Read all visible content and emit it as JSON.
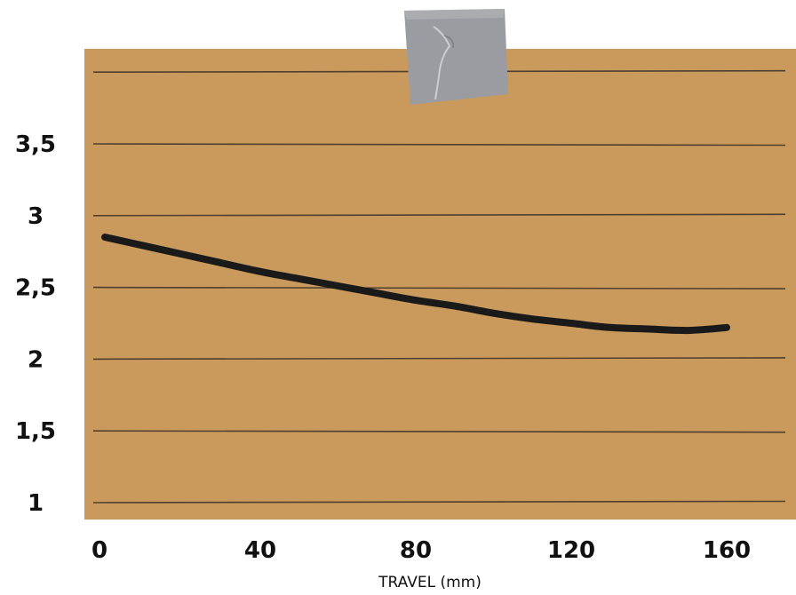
{
  "chart_data": {
    "type": "line",
    "title": "",
    "xlabel": "TRAVEL (mm)",
    "ylabel": "",
    "xlim": [
      0,
      160
    ],
    "ylim": [
      1,
      3.5
    ],
    "x_ticks": [
      "0",
      "40",
      "80",
      "120",
      "160"
    ],
    "y_ticks": [
      "1",
      "1,5",
      "2",
      "2,5",
      "3",
      "3,5"
    ],
    "grid": true,
    "legend": "none",
    "series": [
      {
        "x": [
          0,
          10,
          20,
          30,
          40,
          50,
          60,
          70,
          80,
          90,
          100,
          110,
          120,
          130,
          140,
          150,
          160
        ],
        "y": [
          2.85,
          2.79,
          2.73,
          2.67,
          2.61,
          2.56,
          2.51,
          2.46,
          2.41,
          2.37,
          2.32,
          2.28,
          2.25,
          2.22,
          2.21,
          2.2,
          2.22
        ]
      }
    ],
    "colors": {
      "board": "#cc9a5c",
      "grid": "#3a3026",
      "line": "#1a1a1a",
      "tape": "#9a9ca1"
    }
  }
}
